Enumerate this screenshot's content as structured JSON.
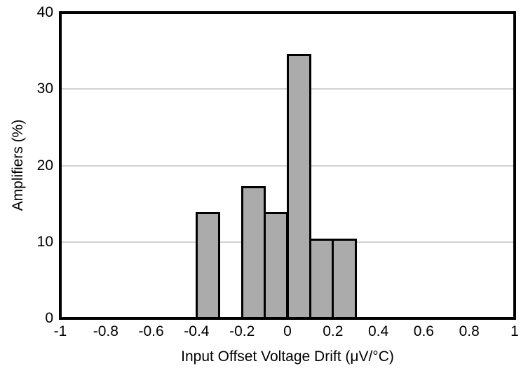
{
  "chart_data": {
    "type": "bar",
    "subtype": "histogram",
    "title": "",
    "xlabel": "Input Offset Voltage Drift (μV/°C)",
    "ylabel": "Amplifiers (%)",
    "xlim": [
      -1,
      1
    ],
    "ylim": [
      0,
      40
    ],
    "x_ticks": [
      {
        "value": -1,
        "label": "-1"
      },
      {
        "value": -0.8,
        "label": "-0.8"
      },
      {
        "value": -0.6,
        "label": "-0.6"
      },
      {
        "value": -0.4,
        "label": "-0.4"
      },
      {
        "value": -0.2,
        "label": "-0.2"
      },
      {
        "value": 0,
        "label": "0"
      },
      {
        "value": 0.2,
        "label": "0.2"
      },
      {
        "value": 0.4,
        "label": "0.4"
      },
      {
        "value": 0.6,
        "label": "0.6"
      },
      {
        "value": 0.8,
        "label": "0.8"
      },
      {
        "value": 1,
        "label": "1"
      }
    ],
    "y_ticks": [
      {
        "value": 0,
        "label": "0"
      },
      {
        "value": 10,
        "label": "10"
      },
      {
        "value": 20,
        "label": "20"
      },
      {
        "value": 30,
        "label": "30"
      },
      {
        "value": 40,
        "label": "40"
      }
    ],
    "gridlines_y": [
      10,
      20,
      30
    ],
    "grid": "horizontal",
    "legend": "none",
    "bin_width": 0.1,
    "bars": [
      {
        "x_start": -0.4,
        "x_end": -0.3,
        "value": 13.8
      },
      {
        "x_start": -0.2,
        "x_end": -0.1,
        "value": 17.2
      },
      {
        "x_start": -0.1,
        "x_end": 0.0,
        "value": 13.8
      },
      {
        "x_start": 0.0,
        "x_end": 0.1,
        "value": 34.5
      },
      {
        "x_start": 0.1,
        "x_end": 0.2,
        "value": 10.3
      },
      {
        "x_start": 0.2,
        "x_end": 0.3,
        "value": 10.3
      }
    ],
    "colors": {
      "background": "#FFFFFF",
      "bar_fill": "#ABABAB",
      "bar_border": "#000000",
      "gridline": "#D3D3D3",
      "axis_frame": "#000000",
      "text": "#000000"
    }
  }
}
